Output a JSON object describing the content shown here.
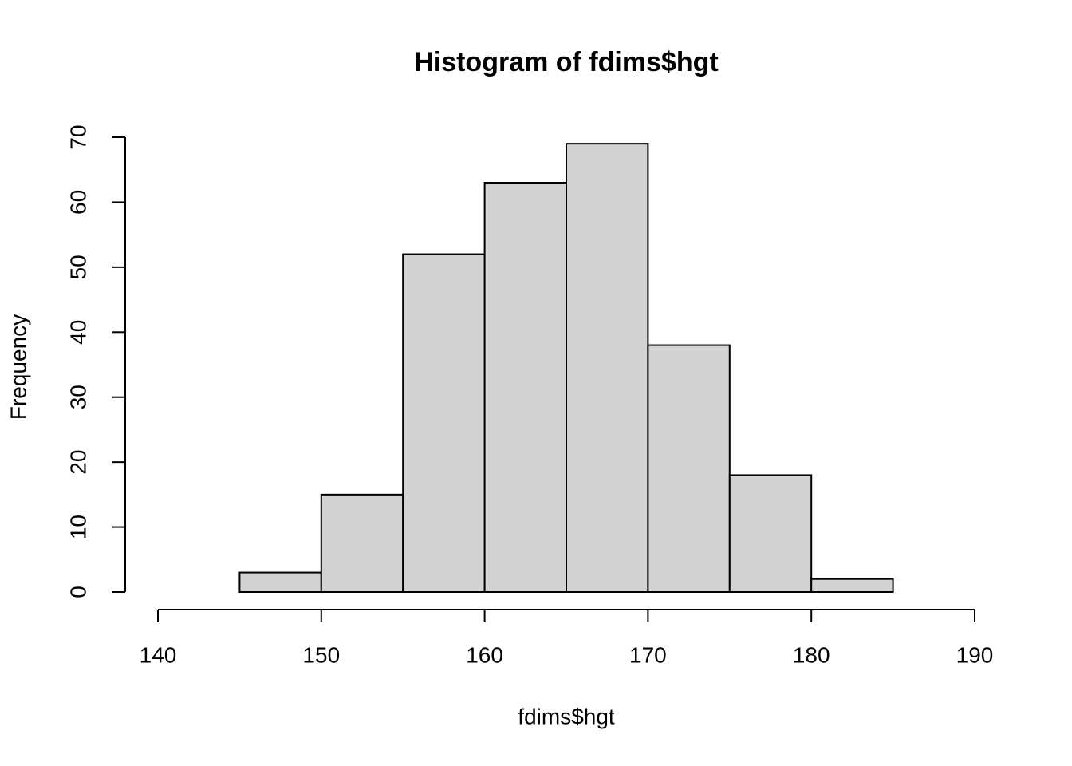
{
  "chart_data": {
    "type": "histogram",
    "title": "Histogram of fdims$hgt",
    "x_label": "fdims$hgt",
    "y_label": "Frequency",
    "bins": [
      145,
      150,
      155,
      160,
      165,
      170,
      175,
      180,
      185
    ],
    "values": [
      3,
      15,
      52,
      63,
      69,
      38,
      18,
      2
    ],
    "color": "#d3d3d3",
    "xlim": [
      140,
      190
    ],
    "xticks": [
      140,
      150,
      160,
      170,
      180,
      190
    ],
    "ylim": [
      0,
      70
    ],
    "yticks": [
      0,
      10,
      20,
      30,
      40,
      50,
      60,
      70
    ]
  }
}
